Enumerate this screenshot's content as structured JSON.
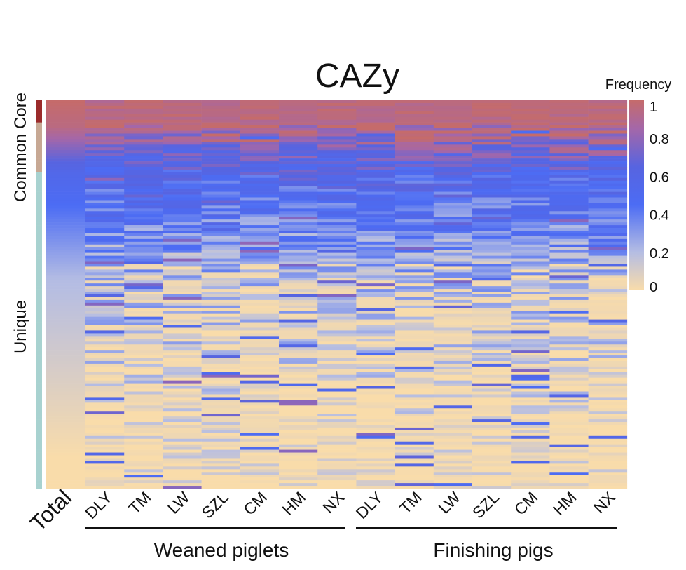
{
  "chart_data": {
    "type": "heatmap",
    "title": "CAZy",
    "columns": [
      "Total",
      "DLY",
      "TM",
      "LW",
      "SZL",
      "CM",
      "HM",
      "NX",
      "DLY",
      "TM",
      "LW",
      "SZL",
      "CM",
      "HM",
      "NX"
    ],
    "column_groups": [
      {
        "name": "Weaned piglets",
        "columns": [
          "DLY",
          "TM",
          "LW",
          "SZL",
          "CM",
          "HM",
          "NX"
        ]
      },
      {
        "name": "Finishing pigs",
        "columns": [
          "DLY",
          "TM",
          "LW",
          "SZL",
          "CM",
          "HM",
          "NX"
        ]
      }
    ],
    "row_annotations": [
      {
        "label": "Common Core",
        "color": "#9b2b2b"
      },
      {
        "label": "Common Core",
        "color": "#c7a894"
      },
      {
        "label": "Unique",
        "color": "#a8d2d0"
      }
    ],
    "rows_sorted_by": "Total",
    "colorbar": {
      "title": "Frequency",
      "range": [
        0,
        1
      ],
      "ticks": [
        "0",
        "0.2",
        "0.4",
        "0.6",
        "0.8",
        "1"
      ],
      "colors": [
        "#f9dcaa",
        "#b5bde3",
        "#4c6cf4",
        "#5764e0",
        "#a467a9",
        "#c56b6b"
      ]
    },
    "legend_position": "right",
    "ylabel_top": "Common Core",
    "ylabel_bottom": "Unique"
  }
}
